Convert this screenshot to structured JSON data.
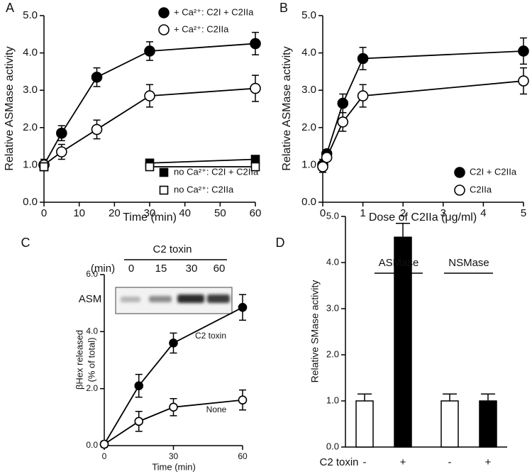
{
  "chart_data": [
    {
      "type": "line",
      "panel_label": "A",
      "xlabel": "Time (min)",
      "ylabel": "Relative ASMase activity",
      "x": [
        0,
        5,
        15,
        30,
        60
      ],
      "xlim": [
        0,
        60
      ],
      "xticks": [
        0,
        10,
        20,
        30,
        40,
        50,
        60
      ],
      "ylim": [
        0,
        5
      ],
      "yticks": [
        {
          "value": 0,
          "label": "0.0"
        },
        {
          "value": 1,
          "label": "1.0"
        },
        {
          "value": 2,
          "label": "2.0"
        },
        {
          "value": 3,
          "label": "3.0"
        },
        {
          "value": 4,
          "label": "4.0"
        },
        {
          "value": 5,
          "label": "5.0"
        }
      ],
      "series": [
        {
          "name": "+ Ca²⁺: C2I + C2IIa",
          "color": "#000000",
          "marker": "circle",
          "filled": true,
          "values": [
            1.0,
            1.85,
            3.35,
            4.05,
            4.25
          ],
          "errors": [
            0.15,
            0.2,
            0.25,
            0.25,
            0.3
          ]
        },
        {
          "name": "+ Ca²⁺: C2IIa",
          "color": "#000000",
          "marker": "circle",
          "filled": false,
          "values": [
            1.0,
            1.35,
            1.95,
            2.85,
            3.05
          ],
          "errors": [
            0.1,
            0.2,
            0.25,
            0.3,
            0.35
          ]
        },
        {
          "name": "no Ca²⁺: C2I + C2IIa",
          "color": "#000000",
          "marker": "square",
          "filled": true,
          "values": [
            0.95,
            null,
            null,
            1.05,
            1.15
          ],
          "errors": [
            0.1,
            null,
            null,
            0.05,
            0.05
          ]
        },
        {
          "name": "no Ca²⁺: C2IIa",
          "color": "#000000",
          "marker": "square",
          "filled": false,
          "values": [
            0.95,
            null,
            null,
            0.95,
            0.95
          ],
          "errors": [
            0.1,
            null,
            null,
            0.05,
            0.05
          ]
        }
      ]
    },
    {
      "type": "line",
      "panel_label": "B",
      "xlabel": "Dose of C2IIa (μg/ml)",
      "ylabel": "Relative ASMase activity",
      "x": [
        0,
        0.1,
        0.5,
        1,
        5
      ],
      "xlim": [
        0,
        5
      ],
      "xticks": [
        0,
        1,
        2,
        3,
        4,
        5
      ],
      "ylim": [
        0,
        5
      ],
      "yticks": [
        {
          "value": 0,
          "label": "0.0"
        },
        {
          "value": 1,
          "label": "1.0"
        },
        {
          "value": 2,
          "label": "2.0"
        },
        {
          "value": 3,
          "label": "3.0"
        },
        {
          "value": 4,
          "label": "4.0"
        },
        {
          "value": 5,
          "label": "5.0"
        }
      ],
      "series": [
        {
          "name": "C2I + C2IIa",
          "color": "#000000",
          "marker": "circle",
          "filled": true,
          "values": [
            1.0,
            1.3,
            2.65,
            3.85,
            4.05
          ],
          "errors": [
            0.15,
            0.1,
            0.25,
            0.3,
            0.35
          ]
        },
        {
          "name": "C2IIa",
          "color": "#000000",
          "marker": "circle",
          "filled": false,
          "values": [
            0.95,
            1.2,
            2.15,
            2.85,
            3.25
          ],
          "errors": [
            0.15,
            0.1,
            0.25,
            0.3,
            0.35
          ]
        }
      ]
    },
    {
      "type": "line",
      "panel_label": "C",
      "xlabel": "Time (min)",
      "ylabel": [
        "βHex released",
        "(% of total)"
      ],
      "gel": {
        "title": "C2 toxin",
        "unit_label": "(min)",
        "lanes": [
          "0",
          "15",
          "30",
          "60"
        ],
        "row_label": "ASM"
      },
      "x": [
        0,
        15,
        30,
        60
      ],
      "xlim": [
        0,
        60
      ],
      "xticks": [
        0,
        30,
        60
      ],
      "ylim": [
        0,
        6
      ],
      "yticks": [
        {
          "value": 0,
          "label": "0.0"
        },
        {
          "value": 2,
          "label": "2.0"
        },
        {
          "value": 4,
          "label": "4.0"
        },
        {
          "value": 6,
          "label": "6.0"
        }
      ],
      "series": [
        {
          "name": "C2 toxin",
          "color": "#000000",
          "marker": "circle",
          "filled": true,
          "values": [
            0.05,
            2.1,
            3.6,
            4.85
          ],
          "errors": [
            0.1,
            0.4,
            0.35,
            0.45
          ]
        },
        {
          "name": "None",
          "color": "#000000",
          "marker": "circle",
          "filled": false,
          "values": [
            0.05,
            0.85,
            1.35,
            1.6
          ],
          "errors": [
            0.1,
            0.35,
            0.3,
            0.35
          ]
        }
      ]
    },
    {
      "type": "bar",
      "panel_label": "D",
      "ylabel": "Relative SMase activity",
      "treatment_label": "C2 toxin",
      "groups": [
        "ASMase",
        "NSMase"
      ],
      "categories": [
        "-",
        "+",
        "-",
        "+"
      ],
      "values": [
        1.0,
        4.55,
        1.0,
        1.0
      ],
      "errors": [
        0.15,
        0.3,
        0.15,
        0.15
      ],
      "colors": [
        "#ffffff",
        "#000000",
        "#ffffff",
        "#000000"
      ],
      "ylim": [
        0,
        5
      ],
      "yticks": [
        {
          "value": 0,
          "label": "0.0"
        },
        {
          "value": 1,
          "label": "1.0"
        },
        {
          "value": 2,
          "label": "2.0"
        },
        {
          "value": 3,
          "label": "3.0"
        },
        {
          "value": 4,
          "label": "4.0"
        },
        {
          "value": 5,
          "label": "5.0"
        }
      ]
    }
  ]
}
